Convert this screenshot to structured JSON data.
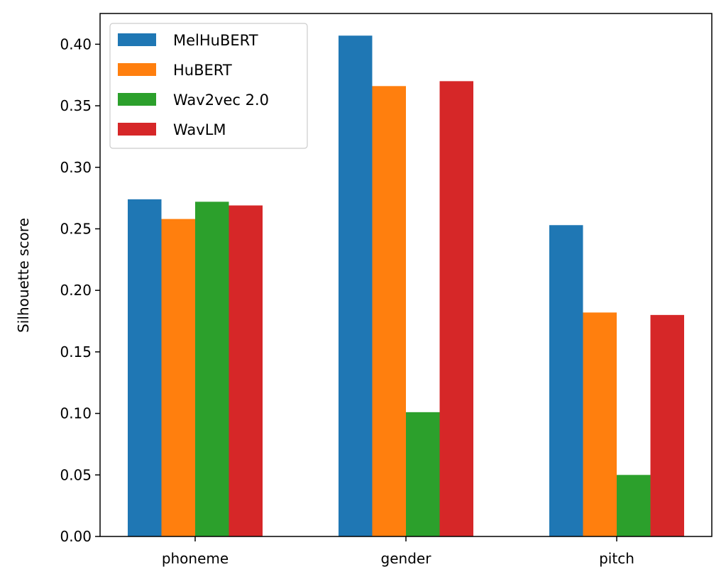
{
  "chart_data": {
    "type": "bar",
    "categories": [
      "phoneme",
      "gender",
      "pitch"
    ],
    "series": [
      {
        "name": "MelHuBERT",
        "color": "#1f77b4",
        "values": [
          0.274,
          0.407,
          0.253
        ]
      },
      {
        "name": "HuBERT",
        "color": "#ff7f0e",
        "values": [
          0.258,
          0.366,
          0.182
        ]
      },
      {
        "name": "Wav2vec 2.0",
        "color": "#2ca02c",
        "values": [
          0.272,
          0.101,
          0.05
        ]
      },
      {
        "name": "WavLM",
        "color": "#d62728",
        "values": [
          0.269,
          0.37,
          0.18
        ]
      }
    ],
    "xlabel": "",
    "ylabel": "Silhouette score",
    "ylim": [
      0,
      0.425
    ],
    "yticks": [
      "0.00",
      "0.05",
      "0.10",
      "0.15",
      "0.20",
      "0.25",
      "0.30",
      "0.35",
      "0.40"
    ],
    "grid": false,
    "legend_position": "top-left"
  }
}
